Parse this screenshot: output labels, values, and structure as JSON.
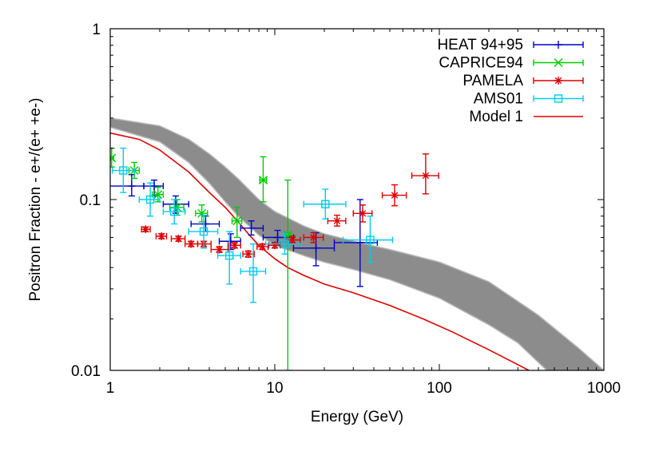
{
  "chart_data": {
    "type": "scatter",
    "title": "",
    "xlabel": "Energy (GeV)",
    "ylabel": "Positron Fraction - e+/(e+ +e-)",
    "xscale": "log",
    "yscale": "log",
    "xlim": [
      1,
      1000
    ],
    "ylim": [
      0.01,
      1
    ],
    "x_tick_labels": [
      "1",
      "10",
      "100",
      "1000"
    ],
    "y_tick_labels": [
      "0.01",
      "0.1",
      "1"
    ],
    "grid": false,
    "legend_position": "top-right",
    "series": [
      {
        "name": "HEAT 94+95",
        "color": "#0000cc",
        "marker": "plus",
        "points": [
          {
            "x": 1.35,
            "y": 0.12,
            "xlo": 0.95,
            "xhi": 1.6,
            "ylo": 0.105,
            "yhi": 0.14
          },
          {
            "x": 1.85,
            "y": 0.12,
            "xlo": 1.6,
            "xhi": 2.1,
            "ylo": 0.105,
            "yhi": 0.13
          },
          {
            "x": 2.5,
            "y": 0.094,
            "xlo": 2.1,
            "xhi": 3.0,
            "ylo": 0.083,
            "yhi": 0.105
          },
          {
            "x": 3.8,
            "y": 0.072,
            "xlo": 3.1,
            "xhi": 4.6,
            "ylo": 0.065,
            "yhi": 0.08
          },
          {
            "x": 5.4,
            "y": 0.057,
            "xlo": 4.6,
            "xhi": 6.2,
            "ylo": 0.051,
            "yhi": 0.063
          },
          {
            "x": 7.2,
            "y": 0.068,
            "xlo": 6.2,
            "xhi": 8.5,
            "ylo": 0.062,
            "yhi": 0.075
          },
          {
            "x": 10.4,
            "y": 0.06,
            "xlo": 8.5,
            "xhi": 13.0,
            "ylo": 0.054,
            "yhi": 0.066
          },
          {
            "x": 17.8,
            "y": 0.052,
            "xlo": 13.0,
            "xhi": 23.0,
            "ylo": 0.041,
            "yhi": 0.064
          },
          {
            "x": 33.0,
            "y": 0.056,
            "xlo": 23.0,
            "xhi": 42.0,
            "ylo": 0.031,
            "yhi": 0.1
          }
        ]
      },
      {
        "name": "CAPRICE94",
        "color": "#00cc00",
        "marker": "cross",
        "points": [
          {
            "x": 1.02,
            "y": 0.175,
            "xlo": 1.0,
            "xhi": 1.05,
            "ylo": 0.155,
            "yhi": 0.2
          },
          {
            "x": 1.4,
            "y": 0.148,
            "xlo": 1.3,
            "xhi": 1.5,
            "ylo": 0.133,
            "yhi": 0.165
          },
          {
            "x": 1.95,
            "y": 0.107,
            "xlo": 1.8,
            "xhi": 2.1,
            "ylo": 0.097,
            "yhi": 0.118
          },
          {
            "x": 2.55,
            "y": 0.09,
            "xlo": 2.3,
            "xhi": 2.8,
            "ylo": 0.081,
            "yhi": 0.1
          },
          {
            "x": 3.6,
            "y": 0.083,
            "xlo": 3.3,
            "xhi": 3.9,
            "ylo": 0.074,
            "yhi": 0.093
          },
          {
            "x": 5.9,
            "y": 0.075,
            "xlo": 5.5,
            "xhi": 6.3,
            "ylo": 0.06,
            "yhi": 0.09
          },
          {
            "x": 8.5,
            "y": 0.13,
            "xlo": 8.1,
            "xhi": 8.9,
            "ylo": 0.097,
            "yhi": 0.178
          },
          {
            "x": 12.0,
            "y": 0.062,
            "xlo": 11.5,
            "xhi": 12.5,
            "ylo": 0.01,
            "yhi": 0.13
          }
        ]
      },
      {
        "name": "PAMELA",
        "color": "#dd0000",
        "marker": "star",
        "points": [
          {
            "x": 1.64,
            "y": 0.067,
            "xlo": 1.55,
            "xhi": 1.75,
            "ylo": 0.065,
            "yhi": 0.069
          },
          {
            "x": 2.05,
            "y": 0.061,
            "xlo": 1.9,
            "xhi": 2.2,
            "ylo": 0.059,
            "yhi": 0.063
          },
          {
            "x": 2.6,
            "y": 0.059,
            "xlo": 2.35,
            "xhi": 2.85,
            "ylo": 0.057,
            "yhi": 0.061
          },
          {
            "x": 3.1,
            "y": 0.055,
            "xlo": 2.85,
            "xhi": 3.4,
            "ylo": 0.053,
            "yhi": 0.057
          },
          {
            "x": 3.7,
            "y": 0.055,
            "xlo": 3.4,
            "xhi": 4.1,
            "ylo": 0.053,
            "yhi": 0.057
          },
          {
            "x": 4.6,
            "y": 0.051,
            "xlo": 4.1,
            "xhi": 5.2,
            "ylo": 0.049,
            "yhi": 0.053
          },
          {
            "x": 5.7,
            "y": 0.054,
            "xlo": 5.2,
            "xhi": 6.2,
            "ylo": 0.052,
            "yhi": 0.056
          },
          {
            "x": 6.9,
            "y": 0.048,
            "xlo": 6.4,
            "xhi": 7.5,
            "ylo": 0.046,
            "yhi": 0.05
          },
          {
            "x": 8.4,
            "y": 0.053,
            "xlo": 7.8,
            "xhi": 9.1,
            "ylo": 0.051,
            "yhi": 0.055
          },
          {
            "x": 10.0,
            "y": 0.054,
            "xlo": 9.2,
            "xhi": 10.8,
            "ylo": 0.052,
            "yhi": 0.056
          },
          {
            "x": 12.8,
            "y": 0.058,
            "xlo": 11.5,
            "xhi": 14.3,
            "ylo": 0.056,
            "yhi": 0.061
          },
          {
            "x": 17.2,
            "y": 0.06,
            "xlo": 15.0,
            "xhi": 19.7,
            "ylo": 0.056,
            "yhi": 0.064
          },
          {
            "x": 23.9,
            "y": 0.075,
            "xlo": 21.0,
            "xhi": 27.0,
            "ylo": 0.07,
            "yhi": 0.081
          },
          {
            "x": 34.2,
            "y": 0.083,
            "xlo": 30.0,
            "xhi": 39.0,
            "ylo": 0.074,
            "yhi": 0.093
          },
          {
            "x": 53.5,
            "y": 0.106,
            "xlo": 45.0,
            "xhi": 63.0,
            "ylo": 0.092,
            "yhi": 0.122
          },
          {
            "x": 82.6,
            "y": 0.138,
            "xlo": 68.0,
            "xhi": 99.0,
            "ylo": 0.108,
            "yhi": 0.185
          }
        ]
      },
      {
        "name": "AMS01",
        "color": "#00ccee",
        "marker": "square",
        "points": [
          {
            "x": 1.2,
            "y": 0.148,
            "xlo": 1.03,
            "xhi": 1.4,
            "ylo": 0.11,
            "yhi": 0.2
          },
          {
            "x": 1.75,
            "y": 0.1,
            "xlo": 1.5,
            "xhi": 2.0,
            "ylo": 0.08,
            "yhi": 0.125
          },
          {
            "x": 2.45,
            "y": 0.085,
            "xlo": 2.1,
            "xhi": 2.85,
            "ylo": 0.072,
            "yhi": 0.1
          },
          {
            "x": 3.7,
            "y": 0.065,
            "xlo": 3.0,
            "xhi": 4.5,
            "ylo": 0.052,
            "yhi": 0.081
          },
          {
            "x": 5.3,
            "y": 0.047,
            "xlo": 4.5,
            "xhi": 6.2,
            "ylo": 0.032,
            "yhi": 0.065
          },
          {
            "x": 7.4,
            "y": 0.038,
            "xlo": 6.2,
            "xhi": 8.8,
            "ylo": 0.025,
            "yhi": 0.055
          },
          {
            "x": 11.5,
            "y": 0.055,
            "xlo": 8.8,
            "xhi": 14.5,
            "ylo": 0.048,
            "yhi": 0.063
          },
          {
            "x": 20.3,
            "y": 0.094,
            "xlo": 15.0,
            "xhi": 27.0,
            "ylo": 0.077,
            "yhi": 0.115
          },
          {
            "x": 38.0,
            "y": 0.058,
            "xlo": 26.0,
            "xhi": 52.0,
            "ylo": 0.043,
            "yhi": 0.08
          }
        ]
      }
    ],
    "model_line": {
      "name": "Model 1",
      "color": "#dd0000",
      "points": [
        {
          "x": 1.0,
          "y": 0.245
        },
        {
          "x": 1.5,
          "y": 0.225
        },
        {
          "x": 2.0,
          "y": 0.195
        },
        {
          "x": 3.0,
          "y": 0.145
        },
        {
          "x": 4.0,
          "y": 0.11
        },
        {
          "x": 5.0,
          "y": 0.09
        },
        {
          "x": 6.0,
          "y": 0.074
        },
        {
          "x": 7.0,
          "y": 0.062
        },
        {
          "x": 8.0,
          "y": 0.054
        },
        {
          "x": 10.0,
          "y": 0.045
        },
        {
          "x": 12.0,
          "y": 0.04
        },
        {
          "x": 15.0,
          "y": 0.036
        },
        {
          "x": 20.0,
          "y": 0.032
        },
        {
          "x": 30.0,
          "y": 0.0285
        },
        {
          "x": 50.0,
          "y": 0.024
        },
        {
          "x": 80.0,
          "y": 0.02
        },
        {
          "x": 120.0,
          "y": 0.0168
        },
        {
          "x": 200.0,
          "y": 0.0132
        },
        {
          "x": 300.0,
          "y": 0.0108
        },
        {
          "x": 350.0,
          "y": 0.01
        }
      ]
    },
    "model_band": {
      "color": "#8c8c8c",
      "upper": [
        {
          "x": 1.0,
          "y": 0.3
        },
        {
          "x": 2.0,
          "y": 0.27
        },
        {
          "x": 3.0,
          "y": 0.225
        },
        {
          "x": 4.0,
          "y": 0.185
        },
        {
          "x": 5.0,
          "y": 0.155
        },
        {
          "x": 6.0,
          "y": 0.132
        },
        {
          "x": 8.0,
          "y": 0.1
        },
        {
          "x": 10.0,
          "y": 0.085
        },
        {
          "x": 15.0,
          "y": 0.07
        },
        {
          "x": 20.0,
          "y": 0.063
        },
        {
          "x": 30.0,
          "y": 0.057
        },
        {
          "x": 50.0,
          "y": 0.051
        },
        {
          "x": 100.0,
          "y": 0.043
        },
        {
          "x": 200.0,
          "y": 0.033
        },
        {
          "x": 400.0,
          "y": 0.021
        },
        {
          "x": 700.0,
          "y": 0.0135
        },
        {
          "x": 1000.0,
          "y": 0.01
        }
      ],
      "lower": [
        {
          "x": 1.0,
          "y": 0.265
        },
        {
          "x": 2.0,
          "y": 0.218
        },
        {
          "x": 3.0,
          "y": 0.165
        },
        {
          "x": 4.0,
          "y": 0.125
        },
        {
          "x": 5.0,
          "y": 0.097
        },
        {
          "x": 6.0,
          "y": 0.08
        },
        {
          "x": 8.0,
          "y": 0.062
        },
        {
          "x": 10.0,
          "y": 0.054
        },
        {
          "x": 15.0,
          "y": 0.047
        },
        {
          "x": 20.0,
          "y": 0.043
        },
        {
          "x": 30.0,
          "y": 0.039
        },
        {
          "x": 50.0,
          "y": 0.034
        },
        {
          "x": 100.0,
          "y": 0.0265
        },
        {
          "x": 200.0,
          "y": 0.0185
        },
        {
          "x": 300.0,
          "y": 0.0145
        },
        {
          "x": 450.0,
          "y": 0.01
        }
      ]
    }
  }
}
